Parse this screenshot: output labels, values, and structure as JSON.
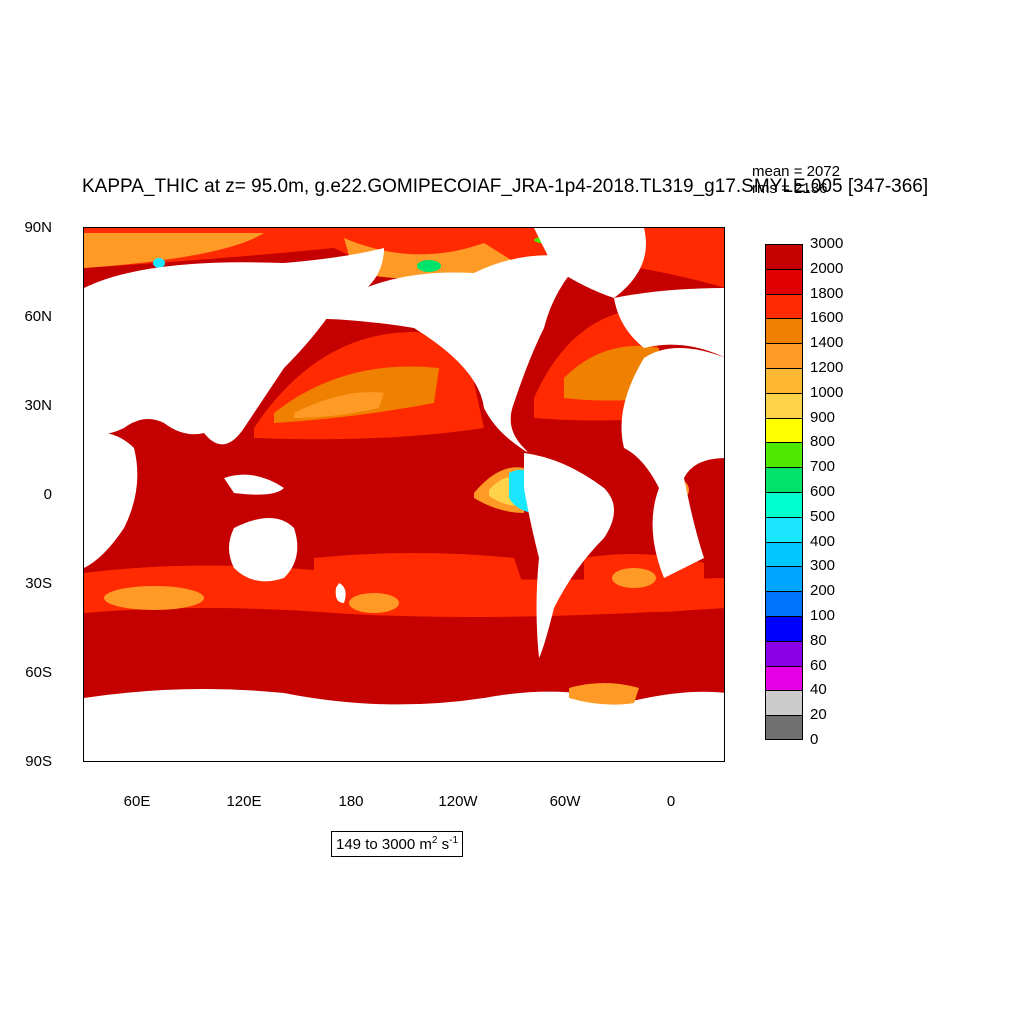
{
  "title": "KAPPA_THIC at z=  95.0m, g.e22.GOMIPECOIAF_JRA-1p4-2018.TL319_g17.SMYLE.005 [347-366]",
  "stats": {
    "mean": "mean = 2072",
    "rms": "rms = 2136"
  },
  "lat_labels": [
    "90N",
    "60N",
    "30N",
    "0",
    "30S",
    "60S",
    "90S"
  ],
  "lon_labels": [
    "60E",
    "120E",
    "180",
    "120W",
    "60W",
    "0"
  ],
  "legend": {
    "labels": [
      "3000",
      "2000",
      "1800",
      "1600",
      "1400",
      "1200",
      "1000",
      "900",
      "800",
      "700",
      "600",
      "500",
      "400",
      "300",
      "200",
      "100",
      "80",
      "60",
      "40",
      "20",
      "0"
    ],
    "colors": [
      "#c40000",
      "#e00000",
      "#ff2a00",
      "#f08000",
      "#ff9a26",
      "#ffb833",
      "#ffd24a",
      "#ffff00",
      "#4ee800",
      "#00e36a",
      "#00ffcc",
      "#1ae6ff",
      "#00c8ff",
      "#00a6ff",
      "#0073ff",
      "#0000ff",
      "#8a00e6",
      "#e600e6",
      "#cccccc",
      "#707070"
    ]
  },
  "range_text": {
    "prefix": "149 to 3000 m",
    "exp1": "2",
    "mid": " s",
    "exp2": "-1"
  },
  "colors": {
    "ocean": "#c40000",
    "land": "#ffffff",
    "mid": "#ff2a00",
    "orange": "#f08000",
    "lightorange": "#ffb833"
  }
}
